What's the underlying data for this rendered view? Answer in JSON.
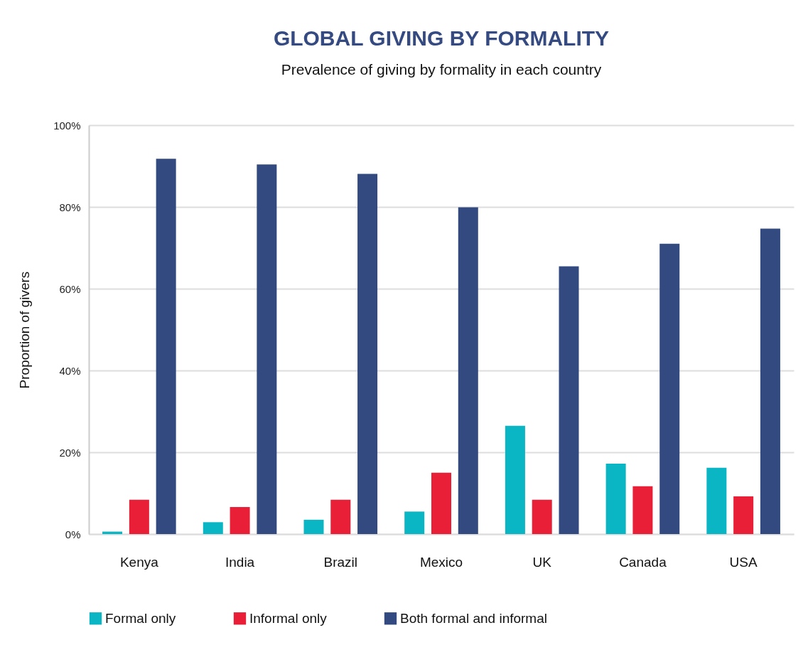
{
  "chart_data": {
    "type": "bar",
    "title": "GLOBAL GIVING BY FORMALITY",
    "subtitle": "Prevalence of giving by formality in each country",
    "ylabel": "Proportion of givers",
    "categories": [
      "Kenya",
      "India",
      "Brazil",
      "Mexico",
      "UK",
      "Canada",
      "USA"
    ],
    "series": [
      {
        "name": "Formal only",
        "color": "#0ab5c4",
        "values": [
          0.6,
          2.9,
          3.5,
          5.5,
          26.5,
          17.2,
          16.2
        ]
      },
      {
        "name": "Informal only",
        "color": "#e81f36",
        "values": [
          8.4,
          6.6,
          8.4,
          15.0,
          8.4,
          11.7,
          9.2
        ]
      },
      {
        "name": "Both formal and informal",
        "color": "#334a80",
        "values": [
          91.8,
          90.4,
          88.1,
          79.9,
          65.5,
          71.0,
          74.7
        ]
      }
    ],
    "ylim": [
      0,
      100
    ],
    "yticks": [
      {
        "value": 0,
        "label": "0%"
      },
      {
        "value": 20,
        "label": "20%"
      },
      {
        "value": 40,
        "label": "40%"
      },
      {
        "value": 60,
        "label": "60%"
      },
      {
        "value": 80,
        "label": "80%"
      },
      {
        "value": 100,
        "label": "100%"
      }
    ],
    "grid": "y",
    "legend": "bottom"
  }
}
